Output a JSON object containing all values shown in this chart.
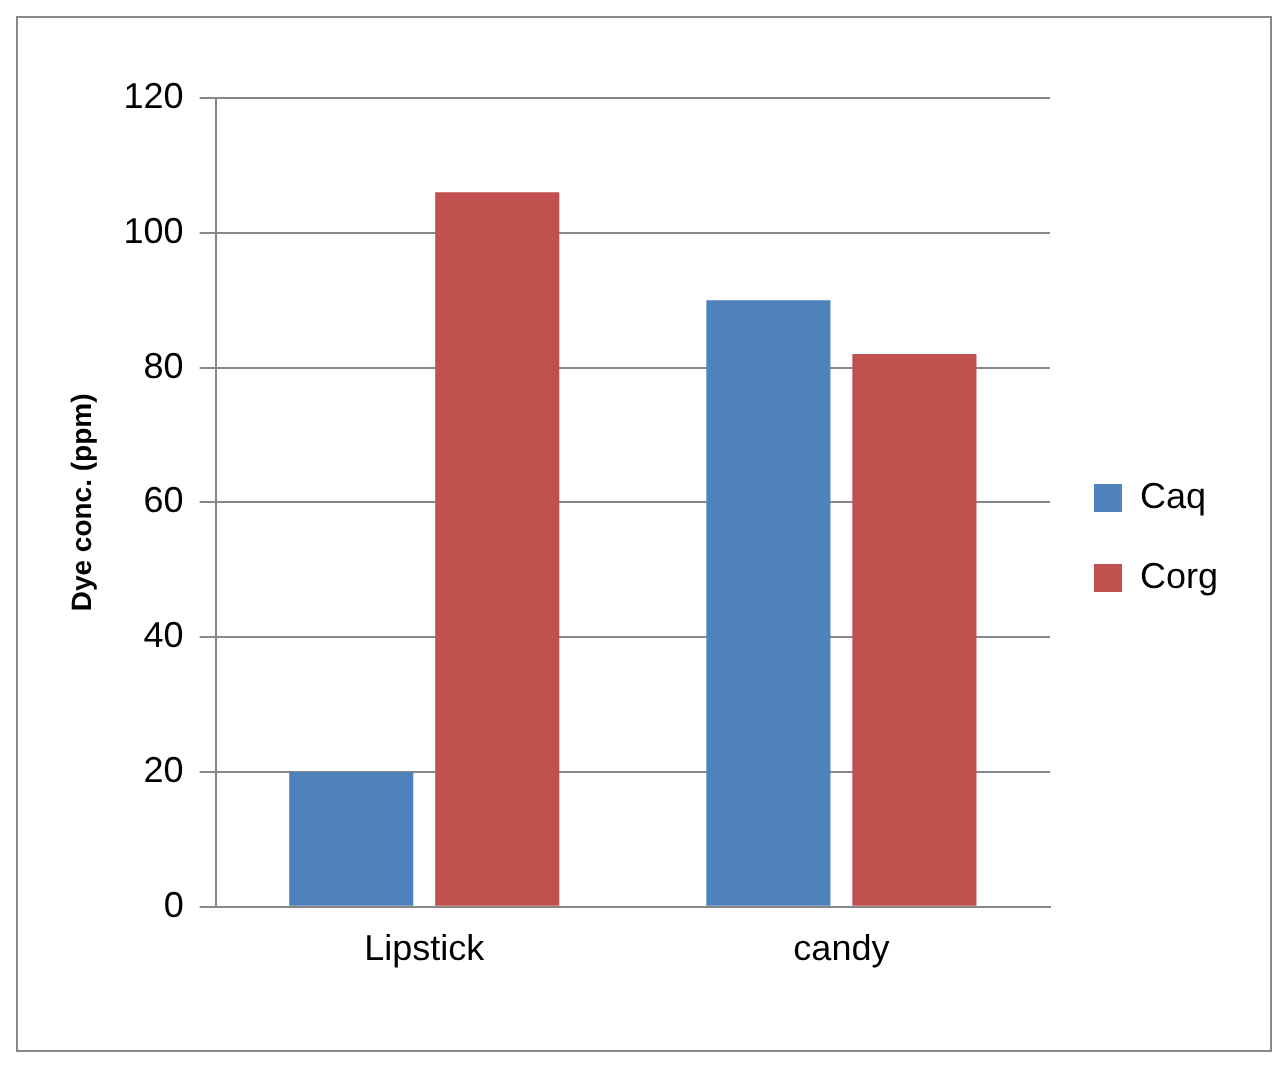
{
  "chart_data": {
    "type": "bar",
    "ylabel": "Dye conc. (ppm)",
    "categories": [
      "Lipstick",
      "candy"
    ],
    "series": [
      {
        "name": "Caq",
        "color": "#4f81bd",
        "values": [
          20,
          90
        ]
      },
      {
        "name": "Corg",
        "color": "#c0504d",
        "values": [
          106,
          82
        ]
      }
    ],
    "ylim": [
      0,
      120
    ],
    "yticks": [
      0,
      20,
      40,
      60,
      80,
      100,
      120
    ],
    "grid": "y",
    "legend": "right"
  }
}
